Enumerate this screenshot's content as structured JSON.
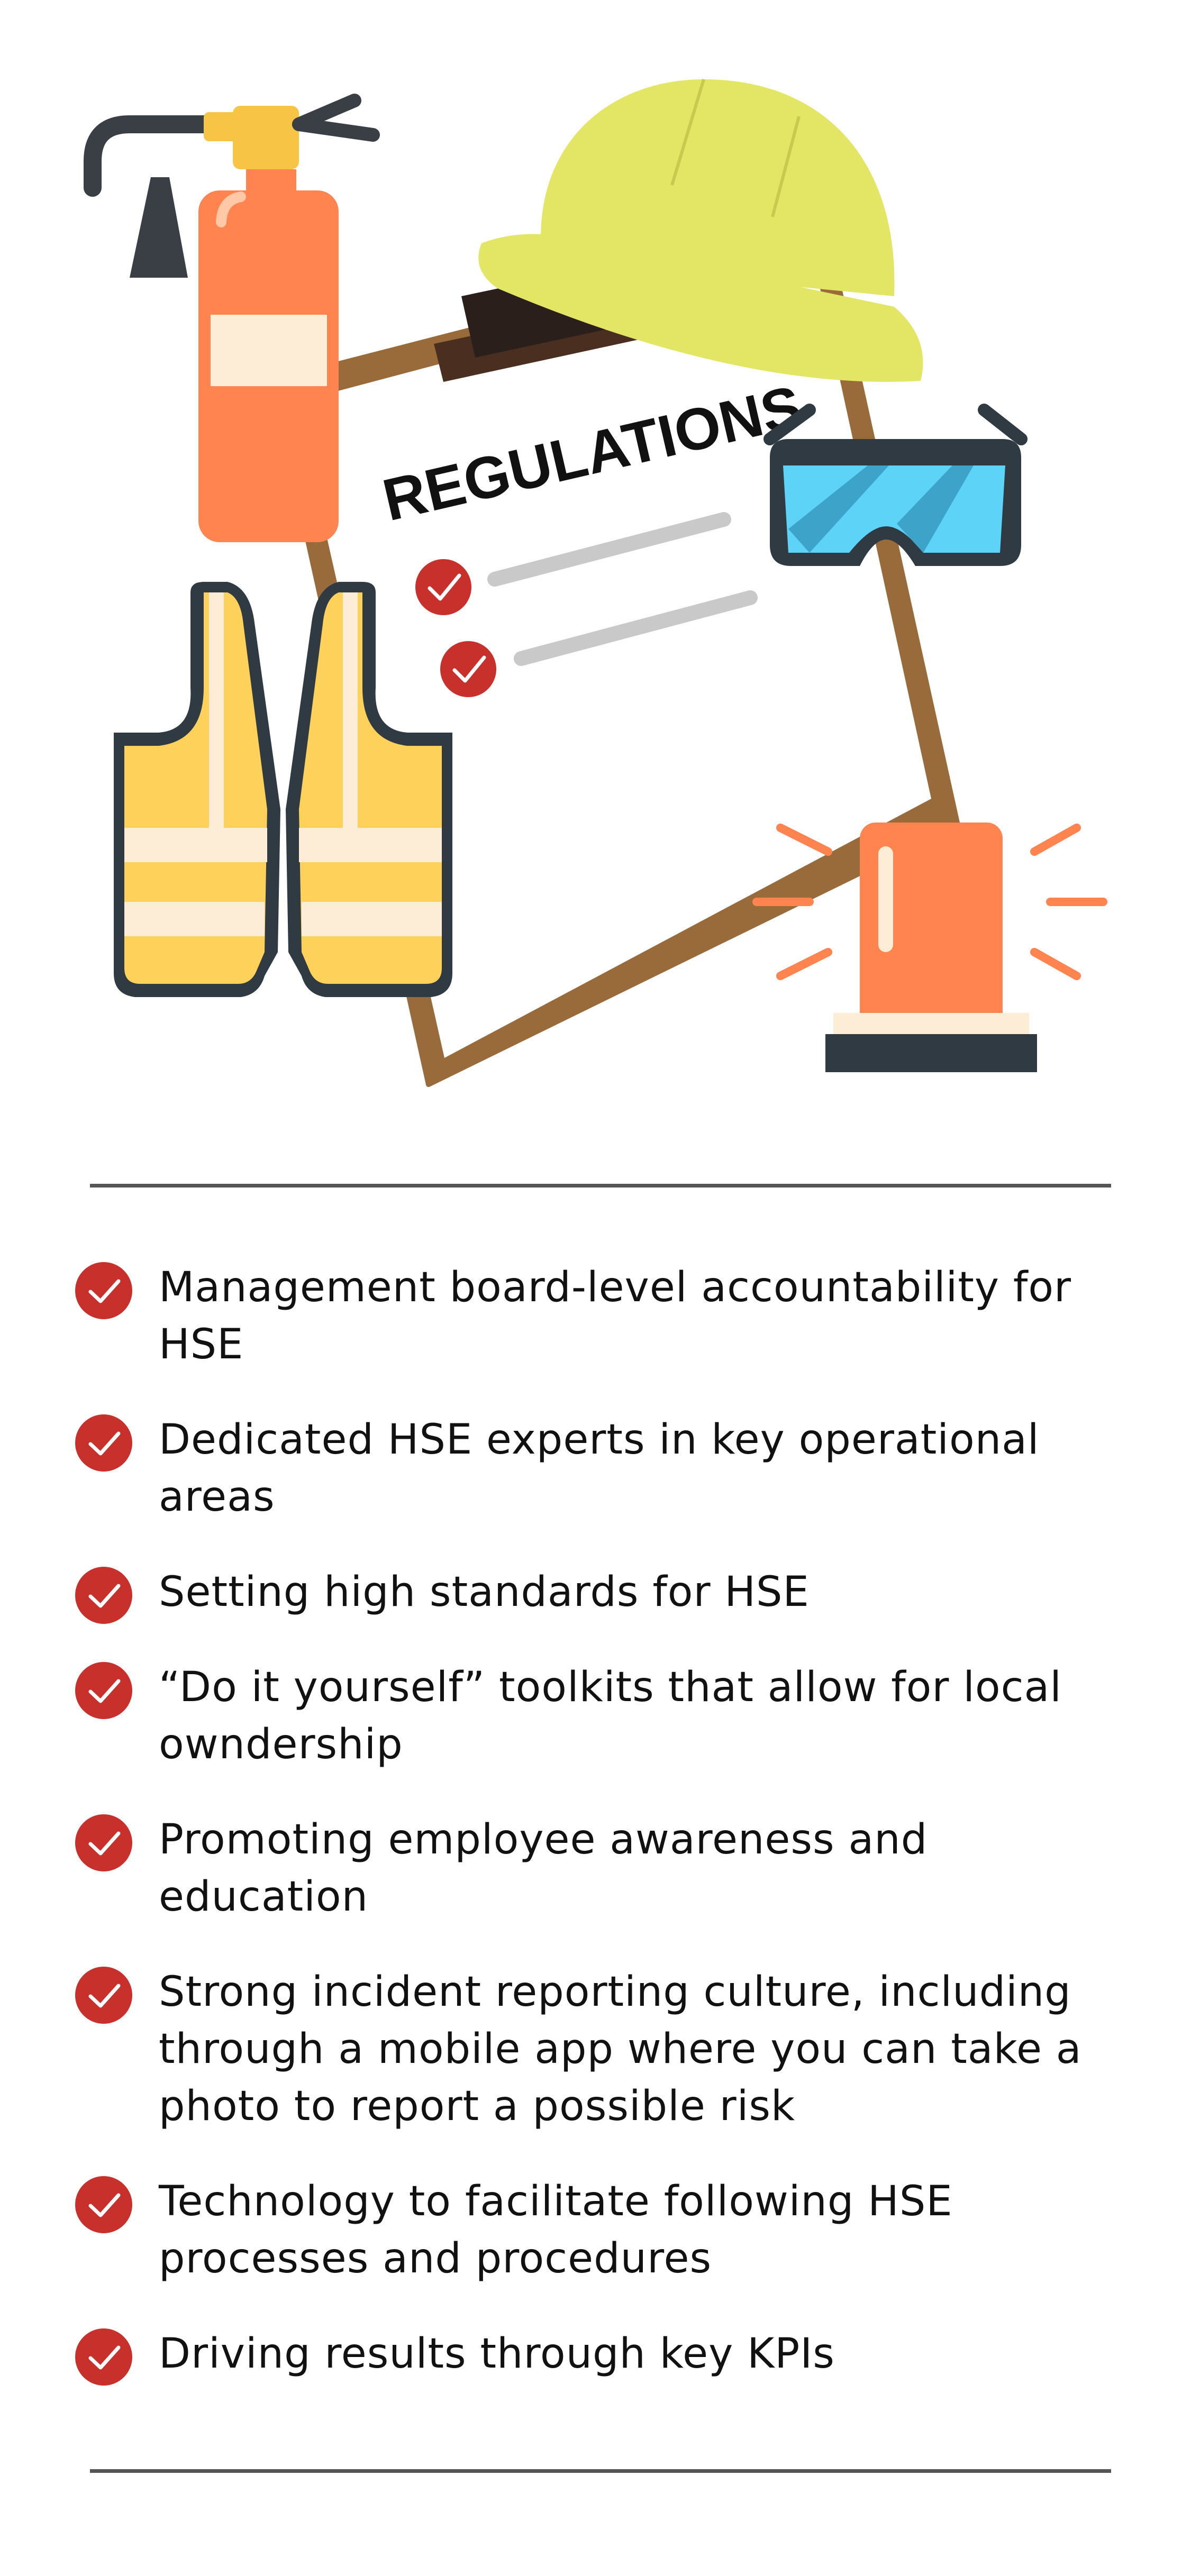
{
  "illustration": {
    "clipboard_title": "REGULATIONS"
  },
  "colors": {
    "accent_red": "#C8312B",
    "extinguisher_orange": "#FF8450",
    "helmet_yellow": "#E3E665",
    "vest_yellow": "#FDD15A",
    "goggles_blue": "#5DD3F8",
    "clipboard_brown": "#9A6B3A",
    "divider_gray": "#555555"
  },
  "checklist": {
    "items": [
      {
        "text": "Management board-level accountability for HSE"
      },
      {
        "text": "Dedicated HSE experts in key operational areas"
      },
      {
        "text": "Setting high standards for HSE"
      },
      {
        "text": "“Do it yourself” toolkits that allow for local owndership"
      },
      {
        "text": "Promoting employee awareness and education"
      },
      {
        "text": "Strong incident reporting culture, including through a mobile app where you can take a photo to report a possible risk"
      },
      {
        "text": "Technology to facilitate following HSE processes and procedures"
      },
      {
        "text": "Driving results through key KPIs"
      }
    ]
  }
}
